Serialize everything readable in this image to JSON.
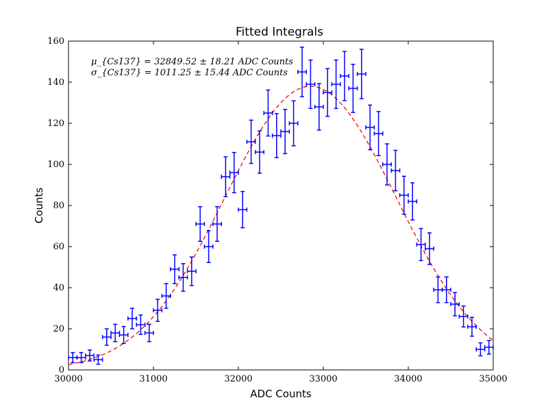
{
  "chart_data": {
    "type": "scatter",
    "title": "Fitted Integrals",
    "xlabel": "ADC Counts",
    "ylabel": "Counts",
    "xlim": [
      30000,
      35000
    ],
    "ylim": [
      0,
      160
    ],
    "xticks": [
      30000,
      31000,
      32000,
      33000,
      34000,
      35000
    ],
    "yticks": [
      0,
      20,
      40,
      60,
      80,
      100,
      120,
      140,
      160
    ],
    "grid": false,
    "annotations": [
      "μ_{Cs137} = 32849.52 ± 18.21 ADC Counts",
      "σ_{Cs137} = 1011.25 ± 15.44 ADC Counts"
    ],
    "data_color": "#0000ff",
    "fit_color": "#ff0000",
    "bin_half_width": 50,
    "series": [
      {
        "type": "errorbar",
        "x": [
          30050,
          30150,
          30250,
          30350,
          30450,
          30550,
          30650,
          30750,
          30850,
          30950,
          31050,
          31150,
          31250,
          31350,
          31450,
          31550,
          31650,
          31750,
          31850,
          31950,
          32050,
          32150,
          32250,
          32350,
          32450,
          32550,
          32650,
          32750,
          32850,
          32950,
          33050,
          33150,
          33250,
          33350,
          33450,
          33550,
          33650,
          33750,
          33850,
          33950,
          34050,
          34150,
          34250,
          34350,
          34450,
          34550,
          34650,
          34750,
          34850,
          34950
        ],
        "y": [
          6,
          6,
          7,
          5,
          16,
          18,
          17,
          25,
          22,
          18,
          29,
          36,
          49,
          45,
          48,
          71,
          60,
          71,
          94,
          96,
          78,
          111,
          106,
          125,
          114,
          116,
          120,
          145,
          139,
          128,
          135,
          139,
          143,
          137,
          144,
          118,
          115,
          100,
          97,
          85,
          82,
          61,
          59,
          39,
          39,
          32,
          26,
          21,
          10,
          11
        ]
      },
      {
        "type": "gaussian-fit",
        "amplitude": 138,
        "mean": 32849.52,
        "sigma": 1011.25
      }
    ]
  }
}
